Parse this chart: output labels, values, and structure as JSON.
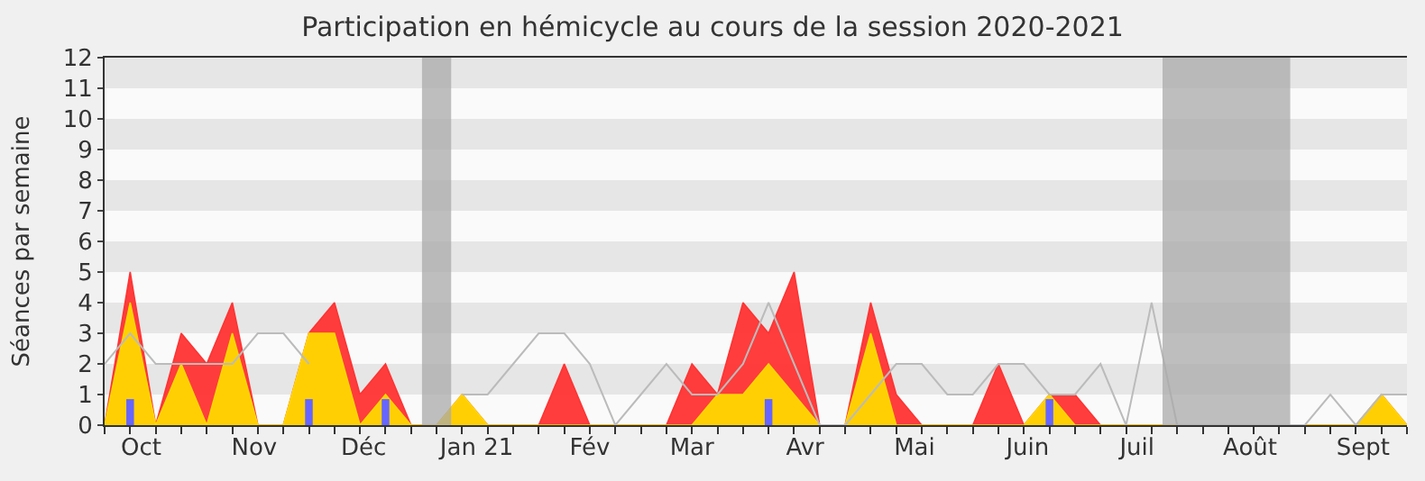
{
  "chart_data": {
    "type": "area",
    "title": "Participation en hémicycle au cours de la session 2020-2021",
    "ylabel": "Séances par semaine",
    "x": [
      "2020-09-21",
      "2020-09-28",
      "2020-10-05",
      "2020-10-12",
      "2020-10-19",
      "2020-10-26",
      "2020-11-02",
      "2020-11-09",
      "2020-11-16",
      "2020-11-23",
      "2020-11-30",
      "2020-12-07",
      "2020-12-14",
      "2020-12-21",
      "2020-12-28",
      "2021-01-04",
      "2021-01-11",
      "2021-01-18",
      "2021-01-25",
      "2021-02-01",
      "2021-02-08",
      "2021-02-15",
      "2021-02-22",
      "2021-03-01",
      "2021-03-08",
      "2021-03-15",
      "2021-03-22",
      "2021-03-29",
      "2021-04-05",
      "2021-04-12",
      "2021-04-19",
      "2021-04-26",
      "2021-05-03",
      "2021-05-10",
      "2021-05-17",
      "2021-05-24",
      "2021-05-31",
      "2021-06-07",
      "2021-06-14",
      "2021-06-21",
      "2021-06-28",
      "2021-07-05",
      "2021-07-12",
      "2021-07-19",
      "2021-07-26",
      "2021-08-02",
      "2021-08-09",
      "2021-08-16",
      "2021-08-23",
      "2021-08-30",
      "2021-09-06",
      "2021-09-13"
    ],
    "series": [
      {
        "color": "#ff3333",
        "values": [
          0,
          5,
          0,
          3,
          2,
          4,
          0,
          0,
          3,
          4,
          1,
          2,
          0,
          0,
          1,
          0,
          0,
          0,
          2,
          0,
          0,
          0,
          0,
          2,
          1,
          4,
          3,
          5,
          0,
          0,
          4,
          1,
          0,
          0,
          0,
          2,
          0,
          1,
          1,
          0,
          0,
          0,
          0,
          0,
          0,
          0,
          0,
          0,
          0,
          0,
          1,
          0
        ]
      },
      {
        "color": "#ffd700",
        "values": [
          0,
          4,
          0,
          2,
          0,
          3,
          0,
          0,
          3,
          3,
          0,
          1,
          0,
          0,
          1,
          0,
          0,
          0,
          0,
          0,
          0,
          0,
          0,
          0,
          1,
          1,
          2,
          1,
          0,
          0,
          3,
          0,
          0,
          0,
          0,
          0,
          0,
          1,
          0,
          0,
          0,
          0,
          0,
          0,
          0,
          0,
          0,
          0,
          0,
          0,
          1,
          0
        ]
      },
      {
        "type": "line",
        "color": "#bbbbbb",
        "values": [
          2,
          3,
          2,
          2,
          2,
          2,
          3,
          3,
          2,
          null,
          null,
          null,
          null,
          null,
          1,
          1,
          2,
          3,
          3,
          2,
          0,
          1,
          2,
          1,
          1,
          2,
          4,
          2,
          0,
          0,
          1,
          2,
          2,
          1,
          1,
          2,
          2,
          1,
          1,
          2,
          0,
          4,
          0,
          0,
          0,
          0,
          0,
          0,
          1,
          0,
          1,
          1
        ]
      },
      {
        "type": "bar",
        "color": "#6666ff",
        "values": [
          null,
          0.85,
          null,
          null,
          null,
          null,
          null,
          null,
          0.85,
          null,
          null,
          0.85,
          null,
          null,
          null,
          null,
          null,
          null,
          null,
          null,
          null,
          null,
          null,
          null,
          null,
          null,
          0.85,
          null,
          null,
          null,
          null,
          null,
          null,
          null,
          null,
          null,
          null,
          0.85,
          null,
          null,
          null,
          null,
          null,
          null,
          null,
          null,
          null,
          null,
          null,
          null,
          null,
          null
        ]
      }
    ],
    "bands": [
      {
        "axis": "x",
        "from": "2020-12-17",
        "to": "2020-12-25",
        "color": "#aaaaaa"
      },
      {
        "axis": "x",
        "from": "2021-07-08",
        "to": "2021-08-12",
        "color": "#aaaaaa"
      }
    ],
    "xlim": [
      "2020-09-21",
      "2021-09-13"
    ],
    "xticks": [
      {
        "value": "2020-10-01",
        "label": "Oct"
      },
      {
        "value": "2020-11-01",
        "label": "Nov"
      },
      {
        "value": "2020-12-01",
        "label": "Déc"
      },
      {
        "value": "2021-01-01",
        "label": "Jan 21"
      },
      {
        "value": "2021-02-01",
        "label": "Fév"
      },
      {
        "value": "2021-03-01",
        "label": "Mar"
      },
      {
        "value": "2021-04-01",
        "label": "Avr"
      },
      {
        "value": "2021-05-01",
        "label": "Mai"
      },
      {
        "value": "2021-06-01",
        "label": "Juin"
      },
      {
        "value": "2021-07-01",
        "label": "Juil"
      },
      {
        "value": "2021-08-01",
        "label": "Août"
      },
      {
        "value": "2021-09-01",
        "label": "Sept"
      }
    ],
    "ylim": [
      0,
      12
    ],
    "yticks": [
      0,
      1,
      2,
      3,
      4,
      5,
      6,
      7,
      8,
      9,
      10,
      11,
      12
    ]
  }
}
